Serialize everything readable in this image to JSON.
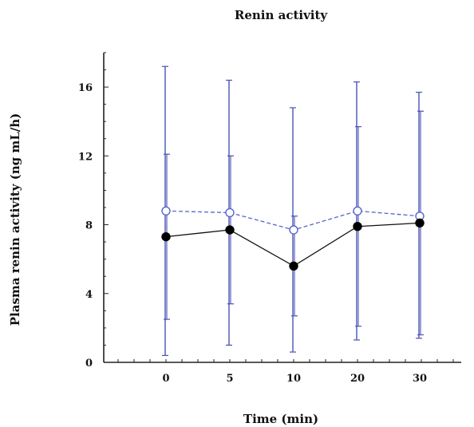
{
  "chart_data": {
    "type": "line",
    "title": "Renin activity",
    "xlabel": "Time (min)",
    "ylabel": "Plasma renin activity (ng mL/h)",
    "categories": [
      "0",
      "5",
      "10",
      "20",
      "30"
    ],
    "ylim": [
      0,
      18
    ],
    "yticks": [
      0,
      4,
      8,
      12,
      16
    ],
    "grid": false,
    "legend": "none",
    "series": [
      {
        "values": [
          8.8,
          8.7,
          7.7,
          8.8,
          8.5
        ],
        "error_upper": [
          17.2,
          16.4,
          14.8,
          16.3,
          15.7
        ],
        "error_lower": [
          0.4,
          1.0,
          0.6,
          1.3,
          1.4
        ],
        "marker": "open-circle",
        "line_style": "dashed",
        "color": "#5566cc"
      },
      {
        "values": [
          7.3,
          7.7,
          5.6,
          7.9,
          8.1
        ],
        "error_upper": [
          12.1,
          12.0,
          8.5,
          13.7,
          14.6
        ],
        "error_lower": [
          2.5,
          3.4,
          2.7,
          2.1,
          1.6
        ],
        "marker": "filled-circle",
        "line_style": "solid",
        "color": "#111111"
      }
    ],
    "colors": {
      "error_bar": "#4a52b5",
      "axis": "#222222"
    }
  }
}
